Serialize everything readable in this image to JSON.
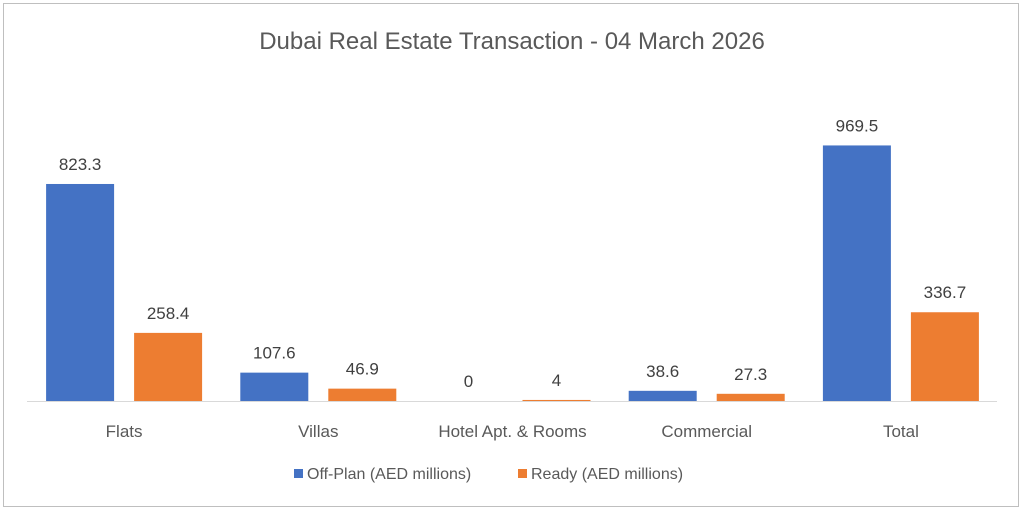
{
  "chart_data": {
    "type": "bar",
    "title": "Dubai Real Estate Transaction - 04 March 2026",
    "categories": [
      "Flats",
      "Villas",
      "Hotel Apt. & Rooms",
      "Commercial",
      "Total"
    ],
    "series": [
      {
        "name": "Off-Plan (AED millions)",
        "color": "#4472C4",
        "values": [
          823.3,
          107.6,
          0,
          38.6,
          969.5
        ],
        "labels": [
          "823.3",
          "107.6",
          "0",
          "38.6",
          "969.5"
        ]
      },
      {
        "name": "Ready (AED millions)",
        "color": "#ED7D31",
        "values": [
          258.4,
          46.9,
          4,
          27.3,
          336.7
        ],
        "labels": [
          "258.4",
          "46.9",
          "4",
          "27.3",
          "336.7"
        ]
      }
    ],
    "xlabel": "",
    "ylabel": "",
    "ylim": [
      0,
      1000
    ],
    "grid": false,
    "legend": "bottom"
  }
}
